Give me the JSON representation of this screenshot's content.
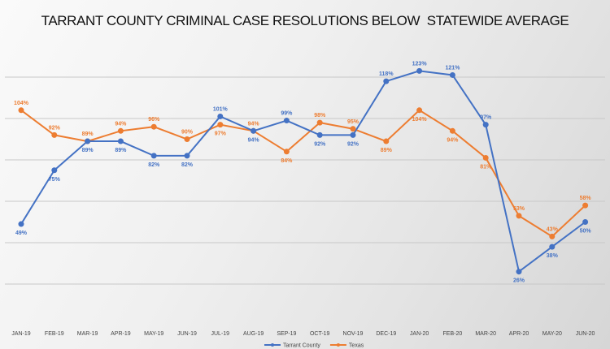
{
  "chart_data": {
    "type": "line",
    "title": "TARRANT COUNTY CRIMINAL CASE RESOLUTIONS BELOW  STATEWIDE AVERAGE",
    "categories": [
      "JAN-19",
      "FEB-19",
      "MAR-19",
      "APR-19",
      "MAY-19",
      "JUN-19",
      "JUL-19",
      "AUG-19",
      "SEP-19",
      "OCT-19",
      "NOV-19",
      "DEC-19",
      "JAN-20",
      "FEB-20",
      "MAR-20",
      "APR-20",
      "MAY-20",
      "JUN-20"
    ],
    "series": [
      {
        "name": "Tarrant County",
        "color": "#4472c4",
        "values": [
          49,
          75,
          89,
          89,
          82,
          82,
          101,
          94,
          99,
          92,
          92,
          118,
          123,
          121,
          97,
          26,
          38,
          50
        ]
      },
      {
        "name": "Texas",
        "color": "#ed7d31",
        "values": [
          104,
          92,
          89,
          94,
          96,
          90,
          97,
          94,
          84,
          98,
          95,
          89,
          104,
          94,
          81,
          53,
          43,
          58
        ]
      }
    ],
    "value_suffix": "%",
    "ylim": [
      0,
      130
    ],
    "grid": true,
    "legend_position": "bottom",
    "xlabel": "",
    "ylabel": ""
  }
}
